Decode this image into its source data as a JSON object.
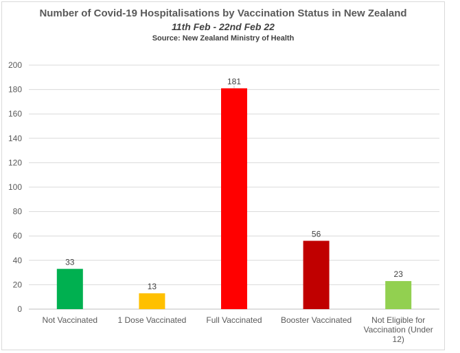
{
  "chart_data": {
    "type": "bar",
    "title": "Number of Covid-19 Hospitalisations by Vaccination Status in New Zealand",
    "subtitle": "11th Feb - 22nd Feb 22",
    "source": "Source: New Zealand Ministry of Health",
    "categories": [
      [
        "Not Vaccinated"
      ],
      [
        "1 Dose Vaccinated"
      ],
      [
        "Full Vaccinated"
      ],
      [
        "Booster Vaccinated"
      ],
      [
        "Not Eligible for",
        "Vaccination (Under",
        "12)"
      ]
    ],
    "values": [
      33,
      13,
      181,
      56,
      23
    ],
    "colors": [
      "#00b050",
      "#ffc000",
      "#ff0000",
      "#c00000",
      "#92d050"
    ],
    "ylim": [
      0,
      200
    ],
    "yticks": [
      0,
      20,
      40,
      60,
      80,
      100,
      120,
      140,
      160,
      180,
      200
    ],
    "grid": true,
    "xlabel": "",
    "ylabel": ""
  }
}
